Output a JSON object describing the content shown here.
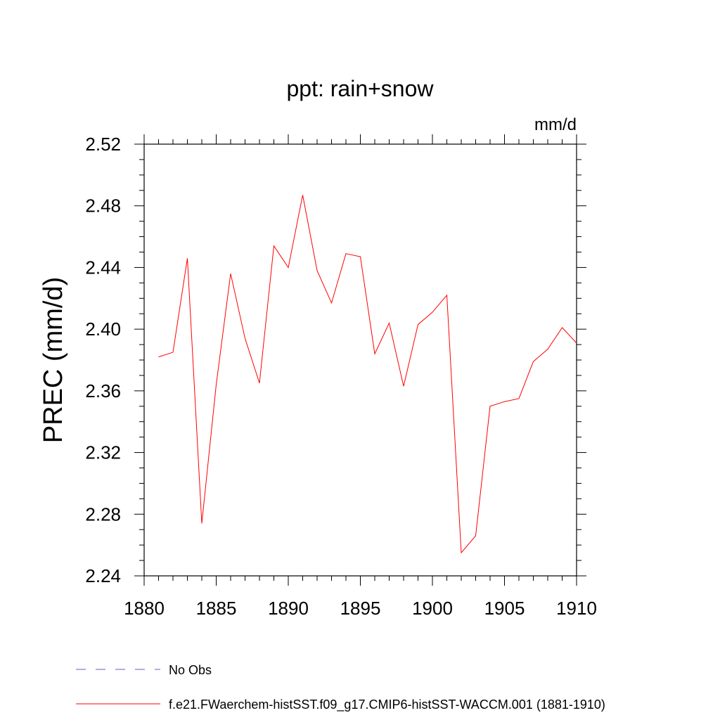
{
  "chart_data": {
    "type": "line",
    "title": "ppt: rain+snow",
    "units": "mm/d",
    "ylabel": "PREC  (mm/d)",
    "xlabel": "",
    "xlim": [
      1880,
      1910
    ],
    "ylim": [
      2.24,
      2.52
    ],
    "xticks": [
      "1880",
      "1885",
      "1890",
      "1895",
      "1900",
      "1905",
      "1910"
    ],
    "yticks": [
      "2.24",
      "2.28",
      "2.32",
      "2.36",
      "2.40",
      "2.44",
      "2.48",
      "2.52"
    ],
    "grid": false,
    "legend_position": "bottom",
    "legend": [
      {
        "label": "No Obs",
        "style": "dashed",
        "color": "#6a5acd"
      },
      {
        "label": "f.e21.FWaerchem-histSST.f09_g17.CMIP6-histSST-WACCM.001 (1881-1910)",
        "style": "solid",
        "color": "#ff0000"
      }
    ],
    "series": [
      {
        "name": "f.e21.FWaerchem-histSST.f09_g17.CMIP6-histSST-WACCM.001 (1881-1910)",
        "color": "#ff0000",
        "x": [
          1881,
          1882,
          1883,
          1884,
          1885,
          1886,
          1887,
          1888,
          1889,
          1890,
          1891,
          1892,
          1893,
          1894,
          1895,
          1896,
          1897,
          1898,
          1899,
          1900,
          1901,
          1902,
          1903,
          1904,
          1905,
          1906,
          1907,
          1908,
          1909,
          1910
        ],
        "y": [
          2.382,
          2.385,
          2.446,
          2.274,
          2.364,
          2.436,
          2.394,
          2.365,
          2.454,
          2.44,
          2.487,
          2.438,
          2.417,
          2.449,
          2.447,
          2.384,
          2.404,
          2.363,
          2.403,
          2.411,
          2.422,
          2.255,
          2.266,
          2.35,
          2.353,
          2.355,
          2.379,
          2.387,
          2.401,
          2.391
        ]
      }
    ]
  }
}
